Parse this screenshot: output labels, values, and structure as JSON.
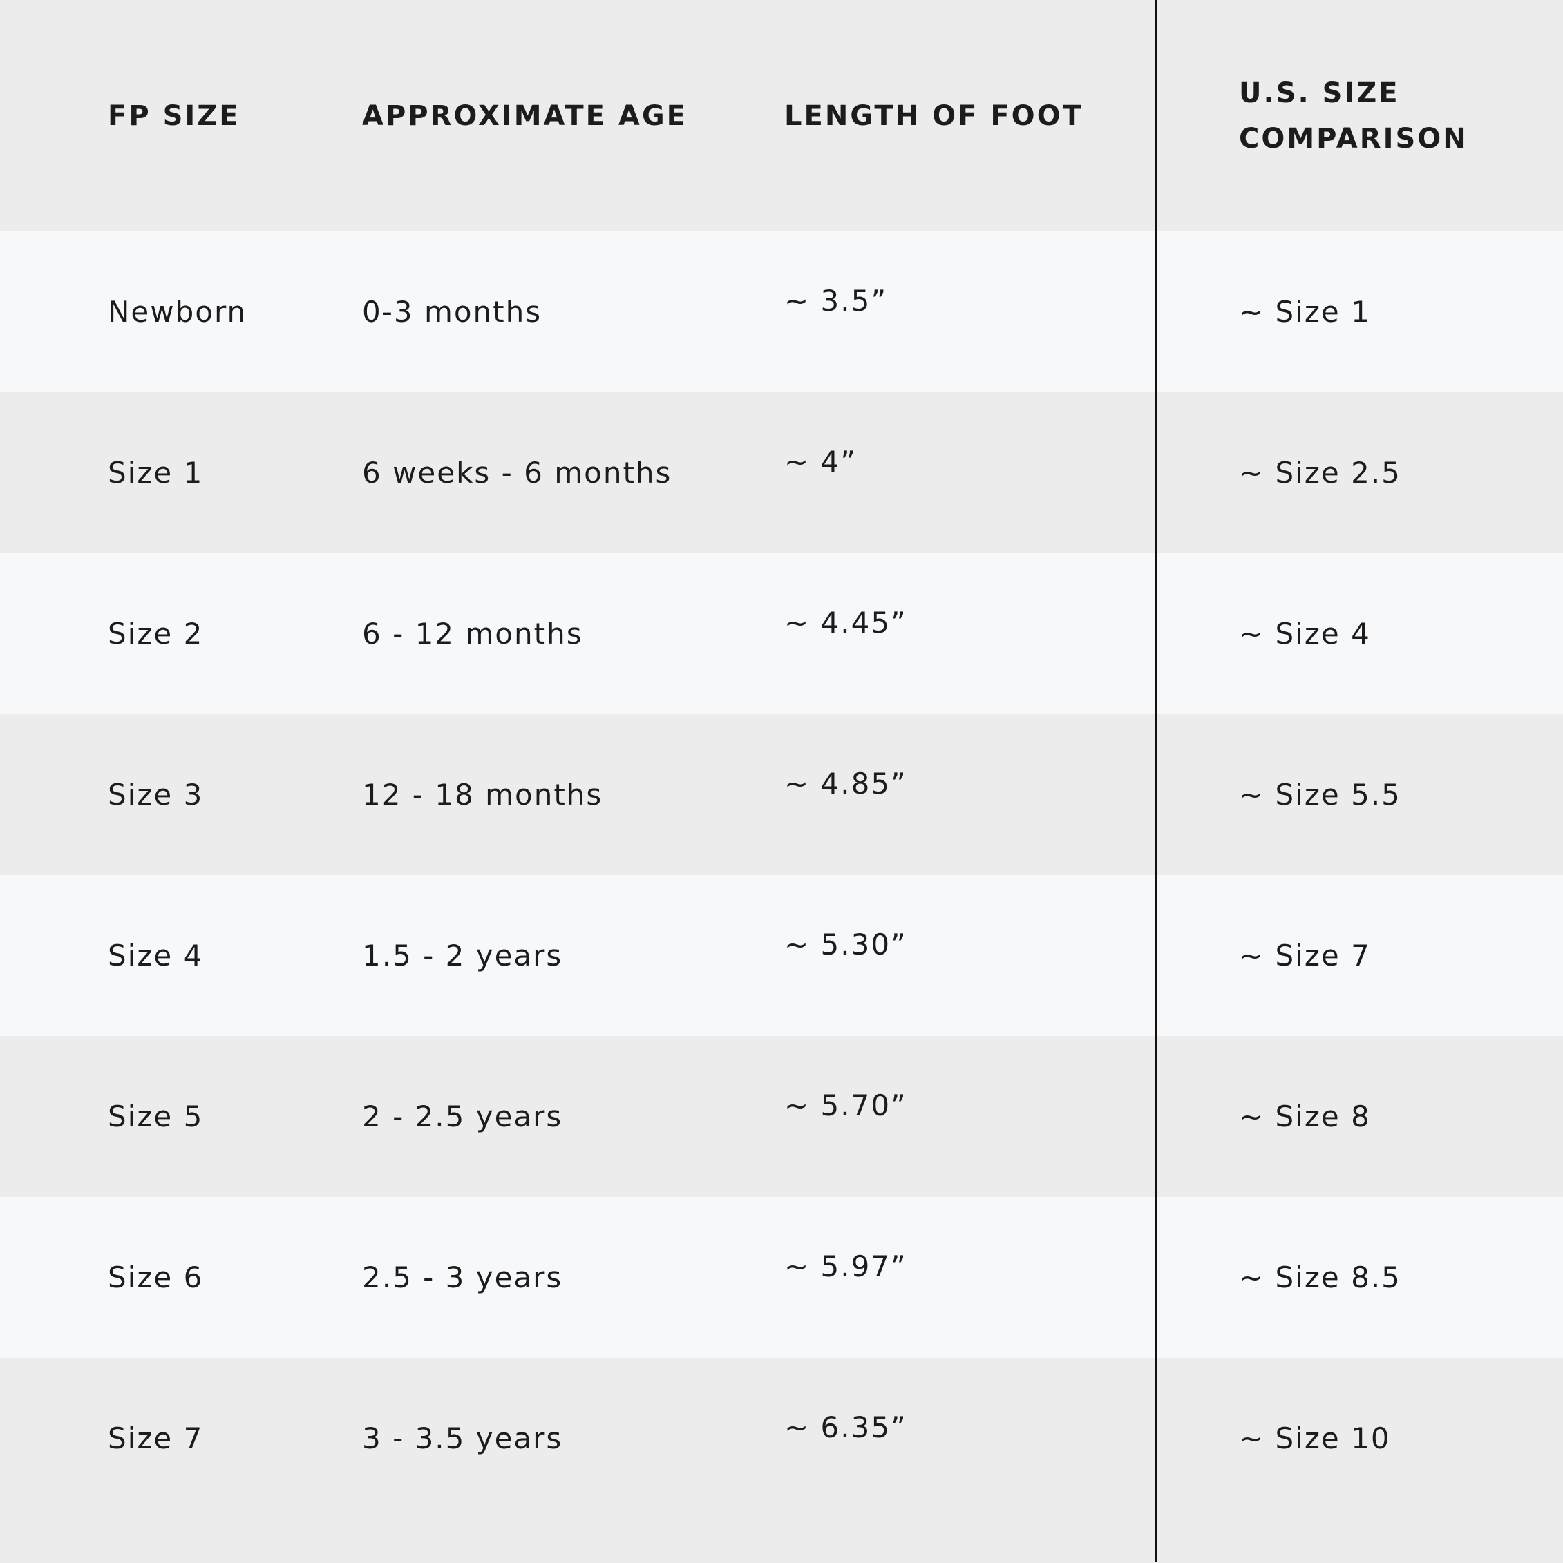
{
  "table": {
    "header": [
      "FP SIZE",
      "APPROXIMATE AGE",
      "LENGTH OF FOOT",
      "U.S. SIZE COMPARISON"
    ],
    "rows": [
      [
        "Newborn",
        "0-3 months",
        "~ 3.5”",
        "~ Size 1"
      ],
      [
        "Size 1",
        "6 weeks - 6 months",
        "~ 4”",
        "~ Size 2.5"
      ],
      [
        "Size 2",
        "6 - 12 months",
        "~ 4.45”",
        "~ Size 4"
      ],
      [
        "Size 3",
        "12 - 18 months",
        "~ 4.85”",
        "~ Size 5.5"
      ],
      [
        "Size 4",
        "1.5 - 2 years",
        "~ 5.30”",
        "~ Size 7"
      ],
      [
        "Size 5",
        "2 - 2.5 years",
        "~ 5.70”",
        "~ Size 8"
      ],
      [
        "Size 6",
        "2.5 - 3 years",
        "~ 5.97”",
        "~ Size 8.5"
      ],
      [
        "Size 7",
        "3 - 3.5 years",
        "~ 6.35”",
        "~ Size 10"
      ]
    ]
  }
}
